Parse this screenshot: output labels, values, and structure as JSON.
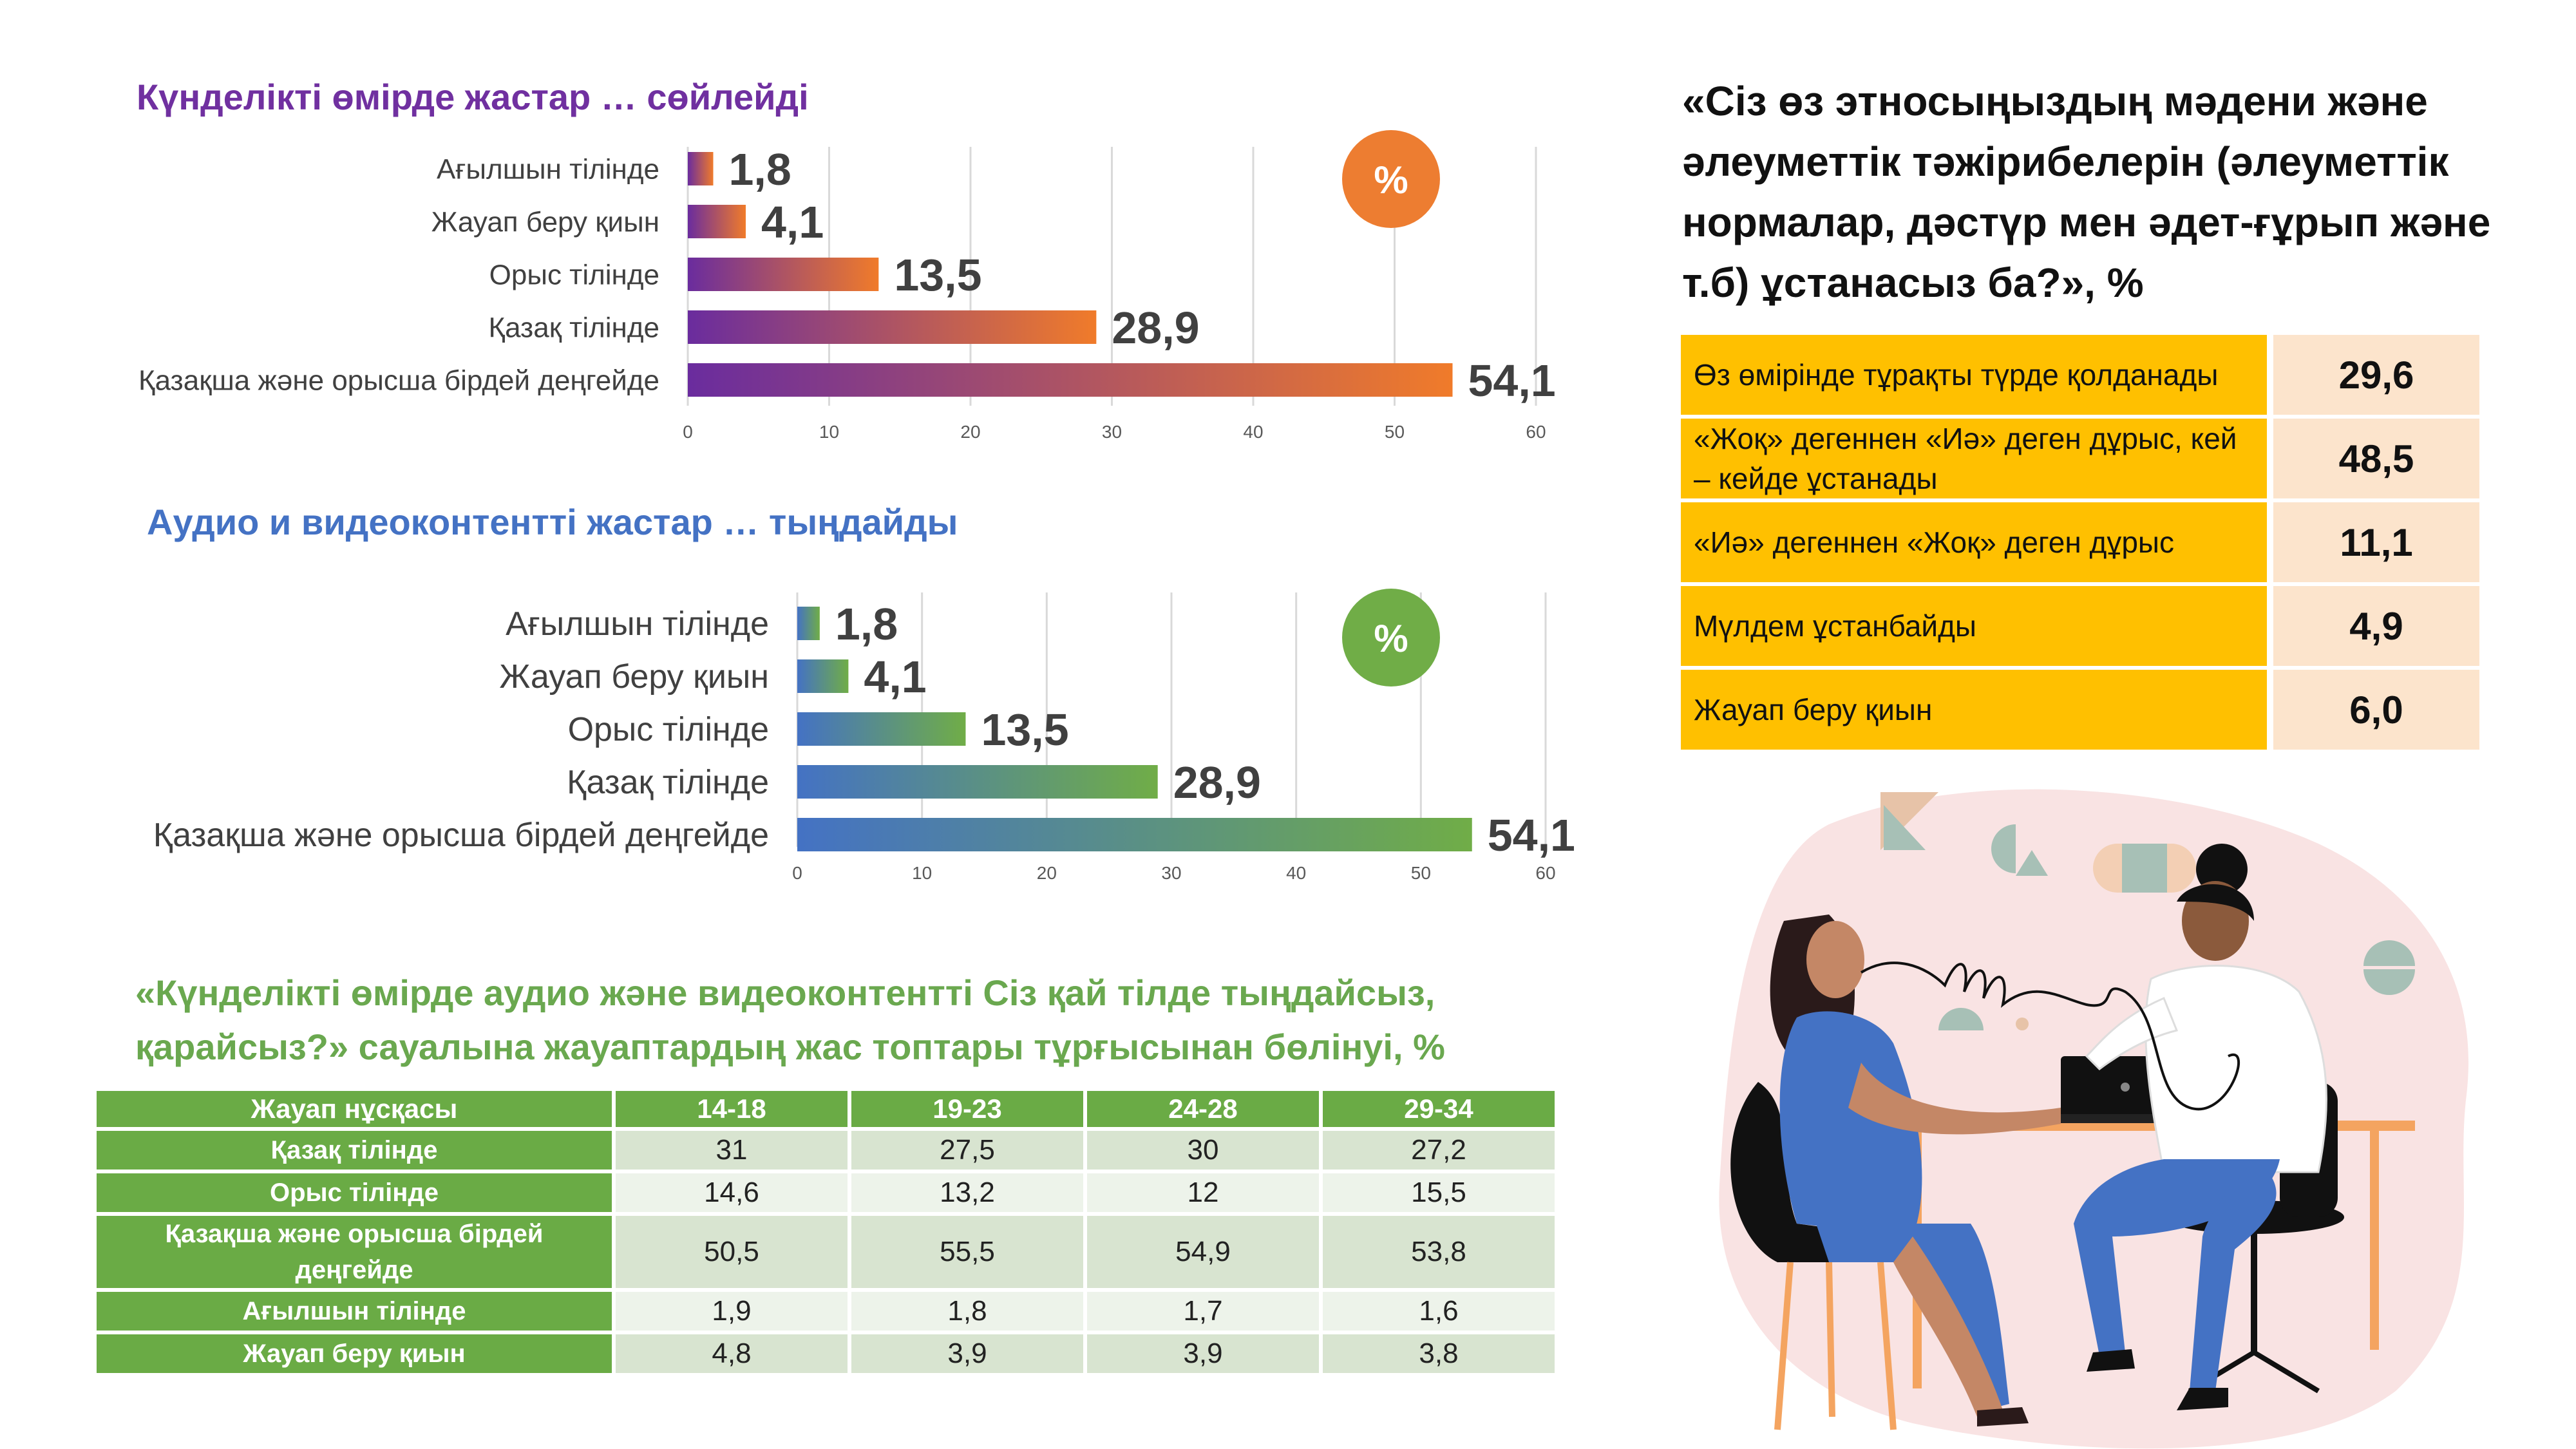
{
  "chart_data": [
    {
      "type": "bar",
      "orientation": "horizontal",
      "title": "Күнделікті өмірде жастар … сөйлейді",
      "categories": [
        "Ағылшын тілінде",
        "Жауап беру қиын",
        "Орыс тілінде",
        "Қазақ тілінде",
        "Қазақша және орысша бірдей деңгейде"
      ],
      "values": [
        1.8,
        4.1,
        13.5,
        28.9,
        54.1
      ],
      "value_labels": [
        "1,8",
        "4,1",
        "13,5",
        "28,9",
        "54,1"
      ],
      "xlim": [
        0,
        60
      ],
      "xticks": [
        "0",
        "10",
        "20",
        "30",
        "40",
        "50",
        "60"
      ],
      "unit_badge": "%",
      "gradient": [
        "#6A2C9E",
        "#F07B2A"
      ],
      "grid": true
    },
    {
      "type": "bar",
      "orientation": "horizontal",
      "title": "Аудио и видеоконтентті жастар … тыңдайды",
      "categories": [
        "Ағылшын тілінде",
        "Жауап беру қиын",
        "Орыс тілінде",
        "Қазақ тілінде",
        "Қазақша және орысша бірдей деңгейде"
      ],
      "values": [
        1.8,
        4.1,
        13.5,
        28.9,
        54.1
      ],
      "value_labels": [
        "1,8",
        "4,1",
        "13,5",
        "28,9",
        "54,1"
      ],
      "xlim": [
        0,
        60
      ],
      "xticks": [
        "0",
        "10",
        "20",
        "30",
        "40",
        "50",
        "60"
      ],
      "unit_badge": "%",
      "gradient": [
        "#4472C4",
        "#70AD47"
      ],
      "grid": true
    }
  ],
  "colors": {
    "title1": "#7030A0",
    "title2": "#4472C4",
    "badge1": "#ED7D31",
    "badge2": "#70AD47"
  },
  "right_panel": {
    "title": "«Сіз өз этносыңыздың  мәдени және әлеуметтік тәжірибелерін (әлеуметтік нормалар, дәстүр мен әдет-ғұрып және т.б) ұстанасыз ба?», %",
    "rows": [
      {
        "label": "Өз өмірінде тұрақты түрде қолданады",
        "value": "29,6"
      },
      {
        "label": "«Жоқ» дегеннен «Иә» деген дұрыс, кей – кейде ұстанады",
        "value": "48,5"
      },
      {
        "label": "«Иә» дегеннен «Жоқ» деген дұрыс",
        "value": "11,1"
      },
      {
        "label": "Мүлдем ұстанбайды",
        "value": "4,9"
      },
      {
        "label": "Жауап беру қиын",
        "value": "6,0"
      }
    ]
  },
  "age_table": {
    "title": "«Күнделікті өмірде аудио және видеоконтентті  Сіз қай тілде тыңдайсыз, қарайсыз?» сауалына жауаптардың жас топтары тұрғысынан  бөлінуі, %",
    "headers": [
      "Жауап нұсқасы",
      "14-18",
      "19-23",
      "24-28",
      "29-34"
    ],
    "rows": [
      {
        "label": "Қазақ тілінде",
        "values": [
          "31",
          "27,5",
          "30",
          "27,2"
        ]
      },
      {
        "label": "Орыс тілінде",
        "values": [
          "14,6",
          "13,2",
          "12",
          "15,5"
        ]
      },
      {
        "label": "Қазақша және орысша бірдей деңгейде",
        "values": [
          "50,5",
          "55,5",
          "54,9",
          "53,8"
        ]
      },
      {
        "label": "Ағылшын тілінде",
        "values": [
          "1,9",
          "1,8",
          "1,7",
          "1,6"
        ]
      },
      {
        "label": "Жауап беру қиын",
        "values": [
          "4,8",
          "3,9",
          "3,9",
          "3,8"
        ]
      }
    ]
  }
}
